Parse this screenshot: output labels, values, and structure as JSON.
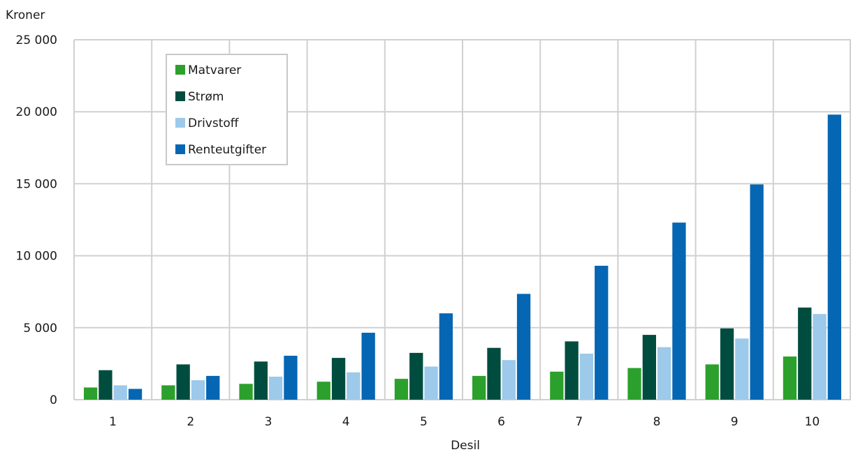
{
  "chart_data": {
    "type": "bar",
    "title": "",
    "ylabel": "Kroner",
    "xlabel": "Desil",
    "ylim": [
      0,
      25000
    ],
    "yticks": [
      0,
      5000,
      10000,
      15000,
      20000,
      25000
    ],
    "ytick_labels": [
      "0",
      "5 000",
      "10 000",
      "15 000",
      "20 000",
      "25 000"
    ],
    "categories": [
      "1",
      "2",
      "3",
      "4",
      "5",
      "6",
      "7",
      "8",
      "9",
      "10"
    ],
    "grid": "both",
    "legend_position": "top-left",
    "series": [
      {
        "name": "Matvarer",
        "color": "#2ca02c",
        "values": [
          850,
          1000,
          1100,
          1250,
          1450,
          1650,
          1950,
          2200,
          2450,
          3000
        ]
      },
      {
        "name": "Strøm",
        "color": "#004d3f",
        "values": [
          2050,
          2450,
          2650,
          2900,
          3250,
          3600,
          4050,
          4500,
          4950,
          6400
        ]
      },
      {
        "name": "Drivstoff",
        "color": "#9dc9ea",
        "values": [
          1000,
          1350,
          1600,
          1900,
          2300,
          2750,
          3200,
          3650,
          4250,
          5950
        ]
      },
      {
        "name": "Renteutgifter",
        "color": "#0566b3",
        "values": [
          750,
          1650,
          3050,
          4650,
          6000,
          7350,
          9300,
          12300,
          14950,
          19800
        ]
      }
    ]
  }
}
